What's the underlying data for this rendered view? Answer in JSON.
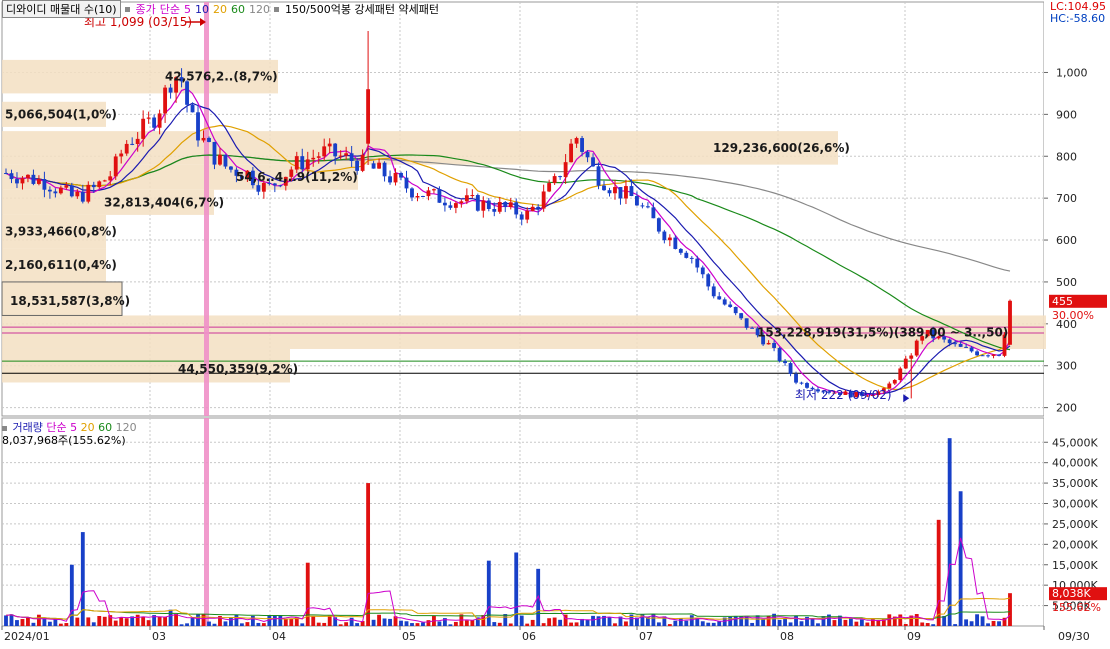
{
  "header": {
    "stock_name": "디와이디 매물대 수(10)",
    "price_label": "종가",
    "ma_type": "단순",
    "ma_periods": [
      "5",
      "10",
      "20",
      "60",
      "120"
    ],
    "ma_colors": [
      "#cc00cc",
      "#1a1ab0",
      "#e0a000",
      "#1a8a1a",
      "#888888"
    ],
    "extra_label": "150/500억봉 강세패턴  약세패턴",
    "lc": "LC:104.95",
    "hc": "HC:-58.60"
  },
  "volume_header": {
    "label": "거래량",
    "ma_type": "단순",
    "ma_periods": [
      "5",
      "20",
      "60",
      "120"
    ],
    "ma_colors": [
      "#cc00cc",
      "#e0a000",
      "#1a8a1a",
      "#888888"
    ],
    "current": "8,037,968주(155.62%)"
  },
  "annotations": {
    "high": "최고 1,099 (03/15)",
    "low": "최저 222 (09/02)",
    "current_price": "455",
    "current_pct": "30.00%",
    "current_volume": "8,038K",
    "current_volume_pct": "155.62%"
  },
  "chart_data": {
    "type": "candlestick",
    "price_axis": {
      "ticks": [
        "1,000",
        "900",
        "800",
        "700",
        "600",
        "500",
        "400",
        "300",
        "200"
      ],
      "tick_values": [
        1000,
        900,
        800,
        700,
        600,
        500,
        400,
        300,
        200
      ],
      "ylim": [
        180,
        1130
      ]
    },
    "volume_axis": {
      "ticks": [
        "45,000K",
        "40,000K",
        "35,000K",
        "30,000K",
        "25,000K",
        "20,000K",
        "15,000K",
        "10,000K",
        "5,000K"
      ],
      "tick_values": [
        45000,
        40000,
        35000,
        30000,
        25000,
        20000,
        15000,
        10000,
        5000
      ],
      "ylim": [
        0,
        48000
      ]
    },
    "x_ticks": [
      "2024/01",
      "03",
      "04",
      "05",
      "06",
      "07",
      "08",
      "09",
      "09/30"
    ],
    "volume_profile": [
      {
        "label": "42,576,2..(8,7%)",
        "price_lo": 1030,
        "price_hi": 950
      },
      {
        "label": "5,066,504(1,0%)",
        "price_lo": 930,
        "price_hi": 870
      },
      {
        "label": "129,236,600(26,6%)",
        "price_lo": 860,
        "price_hi": 780
      },
      {
        "label": "54,6..4,..9(11,2%)",
        "price_lo": 780,
        "price_hi": 720
      },
      {
        "label": "32,813,404(6,7%)",
        "price_lo": 720,
        "price_hi": 660
      },
      {
        "label": "3,933,466(0,8%)",
        "price_lo": 660,
        "price_hi": 580
      },
      {
        "label": "2,160,611(0,4%)",
        "price_lo": 580,
        "price_hi": 500
      },
      {
        "label": "18,531,587(3,8%)",
        "price_lo": 500,
        "price_hi": 420
      },
      {
        "label": "153,228,919(31,5%)(389,00 ~ 3..,50)",
        "price_lo": 420,
        "price_hi": 340
      },
      {
        "label": "44,550,359(9,2%)",
        "price_lo": 340,
        "price_hi": 260
      }
    ],
    "ma_price_series": [
      {
        "name": "120",
        "values": [
          880,
          860,
          820,
          795,
          780,
          760,
          740,
          700,
          660,
          600
        ]
      },
      {
        "name": "60",
        "values": [
          810,
          780,
          770,
          760,
          760,
          730,
          690,
          640,
          560,
          470
        ]
      }
    ],
    "key_candles": [
      {
        "date": "03/15",
        "high": 1099
      },
      {
        "date": "09/02",
        "low": 222
      },
      {
        "date": "09/30",
        "close": 455
      }
    ]
  }
}
